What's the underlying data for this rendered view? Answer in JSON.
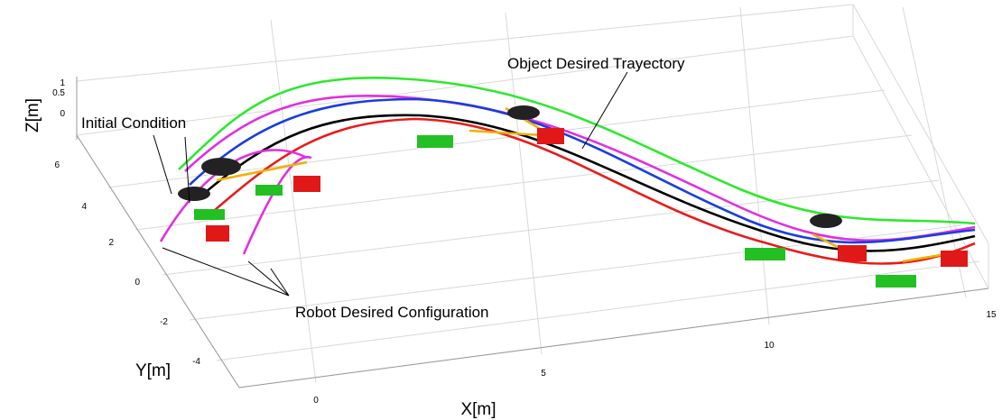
{
  "axes": {
    "z": {
      "label": "Z[m]",
      "ticks": [
        "1",
        "0.5",
        "0"
      ]
    },
    "y": {
      "label": "Y[m]",
      "ticks": [
        "6",
        "4",
        "2",
        "0",
        "-2",
        "-4"
      ]
    },
    "x": {
      "label": "X[m]",
      "ticks": [
        "0",
        "5",
        "10",
        "15"
      ]
    }
  },
  "annotations": {
    "initial": "Initial Condition",
    "object": "Object Desired Trayectory",
    "robot": "Robot Desired Configuration"
  }
}
